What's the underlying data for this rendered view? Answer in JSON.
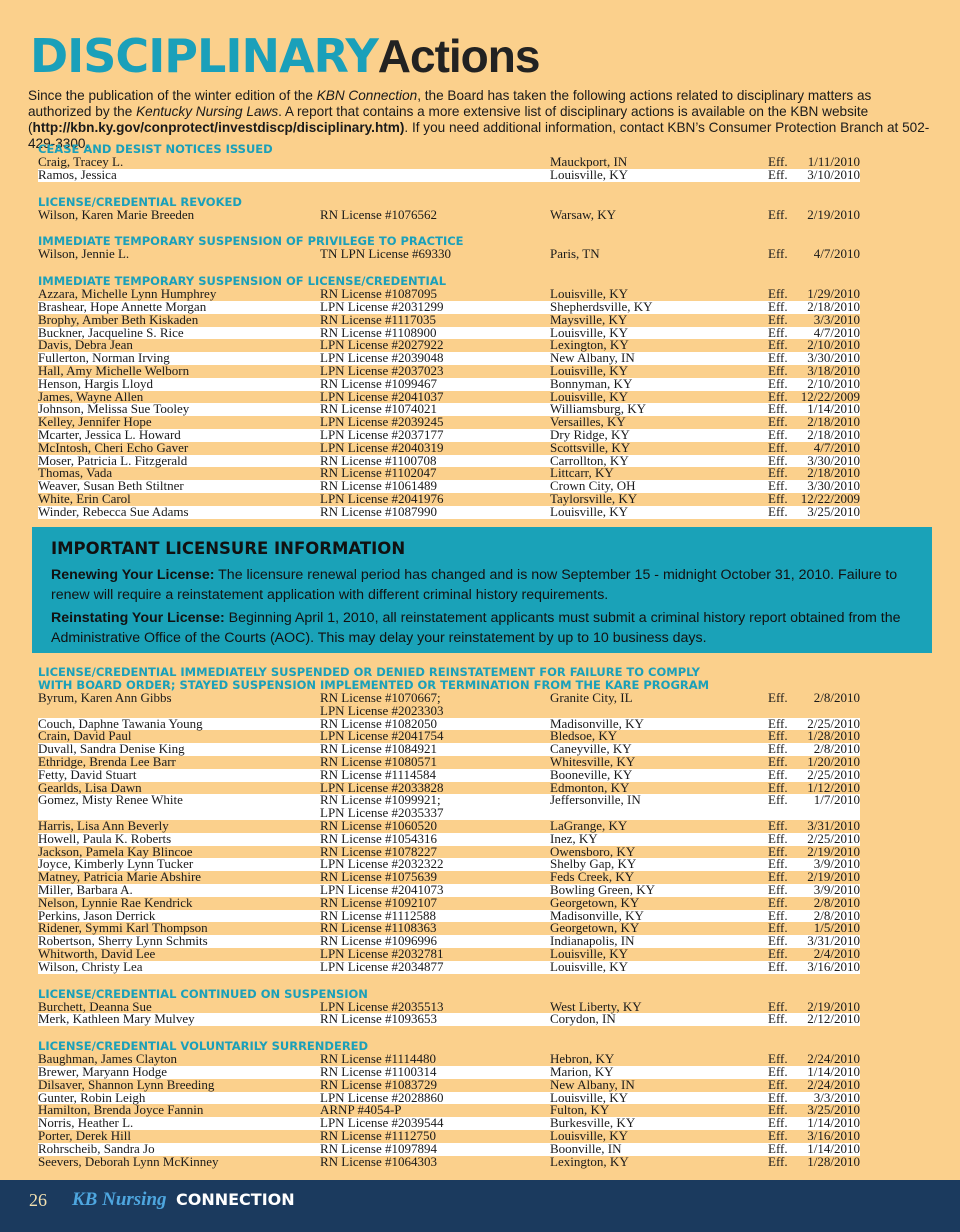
{
  "header": {
    "title_bold": "DISCIPLINARY",
    "title_light": "Actions"
  },
  "intro": [
    "Since the publication of the winter edition of the ",
    "KBN Connection",
    ", the Board has taken the following actions related to disciplinary matters as authorized by the ",
    "Kentucky Nursing Laws",
    ".  A report that contains a more extensive list of disciplinary actions is available on the KBN website (",
    "http://kbn.ky.gov/conprotect/investdiscp/disciplinary.htm)",
    ". If you need additional information, contact KBN’s Consumer Protection Branch at 502-429-3300."
  ],
  "sections_top": [
    {
      "title": "CEASE AND DESIST NOTICES ISSUED",
      "rows": [
        [
          "Craig, Tracey L.",
          null,
          "Mauckport, IN",
          "Eff.",
          "1/11/2010"
        ],
        [
          "Ramos, Jessica",
          null,
          "Louisville, KY",
          "Eff.",
          "3/10/2010"
        ]
      ]
    },
    {
      "title": "LICENSE/CREDENTIAL REVOKED",
      "rows": [
        [
          "Wilson, Karen Marie Breeden",
          "RN License #1076562",
          "Warsaw, KY",
          "Eff.",
          "2/19/2010"
        ]
      ]
    },
    {
      "title": "IMMEDIATE TEMPORARY SUSPENSION OF PRIVILEGE TO PRACTICE",
      "rows": [
        [
          "Wilson, Jennie L.",
          "TN LPN License #69330",
          "Paris, TN",
          "Eff.",
          "4/7/2010"
        ]
      ]
    },
    {
      "title": "IMMEDIATE TEMPORARY SUSPENSION OF LICENSE/CREDENTIAL",
      "rows": [
        [
          "Azzara, Michelle Lynn Humphrey",
          "RN License #1087095",
          "Louisville, KY",
          "Eff.",
          "1/29/2010"
        ],
        [
          "Brashear, Hope Annette Morgan",
          "LPN License #2031299",
          "Shepherdsville, KY",
          "Eff.",
          "2/18/2010"
        ],
        [
          "Brophy, Amber Beth Kiskaden",
          "RN License #1117035",
          "Maysville, KY",
          "Eff.",
          "3/3/2010"
        ],
        [
          "Buckner, Jacqueline S. Rice",
          "RN License #1108900",
          "Louisville, KY",
          "Eff.",
          "4/7/2010"
        ],
        [
          "Davis, Debra Jean",
          "LPN License #2027922",
          "Lexington, KY",
          "Eff.",
          "2/10/2010"
        ],
        [
          "Fullerton, Norman Irving",
          "LPN License #2039048",
          "New Albany, IN",
          "Eff.",
          "3/30/2010"
        ],
        [
          "Hall, Amy Michelle Welborn",
          "LPN License #2037023",
          "Louisville, KY",
          "Eff.",
          "3/18/2010"
        ],
        [
          "Henson, Hargis Lloyd",
          "RN License #1099467",
          "Bonnyman, KY",
          "Eff.",
          "2/10/2010"
        ],
        [
          "James, Wayne Allen",
          "LPN License #2041037",
          "Louisville, KY",
          "Eff.",
          "12/22/2009"
        ],
        [
          "Johnson, Melissa Sue Tooley",
          "RN License #1074021",
          "Williamsburg, KY",
          "Eff.",
          "1/14/2010"
        ],
        [
          "Kelley, Jennifer Hope",
          "LPN License #2039245",
          "Versailles, KY",
          "Eff.",
          "2/18/2010"
        ],
        [
          "Mcarter, Jessica L. Howard",
          "LPN License #2037177",
          "Dry Ridge, KY",
          "Eff.",
          "2/18/2010"
        ],
        [
          "McIntosh, Cheri Echo Gaver",
          "LPN License #2040319",
          "Scottsville, KY",
          "Eff.",
          "4/7/2010"
        ],
        [
          "Moser, Patricia L. Fitzgerald",
          "RN License #1100708",
          "Carrollton, KY",
          "Eff.",
          "3/30/2010"
        ],
        [
          "Thomas, Vada",
          "RN License #1102047",
          "Littcarr, KY",
          "Eff.",
          "2/18/2010"
        ],
        [
          "Weaver, Susan Beth Stiltner",
          "RN License #1061489",
          "Crown City, OH",
          "Eff.",
          "3/30/2010"
        ],
        [
          "White, Erin Carol",
          "LPN License #2041976",
          "Taylorsville, KY",
          "Eff.",
          "12/22/2009"
        ],
        [
          "Winder, Rebecca Sue Adams",
          "RN License #1087990",
          "Louisville, KY",
          "Eff.",
          "3/25/2010"
        ]
      ]
    }
  ],
  "info_box": {
    "title": "IMPORTANT LICENSURE INFORMATION",
    "paragraphs": [
      {
        "label": "Renewing Your License:",
        "text": " The licensure renewal period has changed and is now September 15 - midnight October 31, 2010. Failure to renew will require a reinstatement application with different criminal history requirements."
      },
      {
        "label": "Reinstating Your License:",
        "text": " Beginning April 1, 2010, all reinstatement applicants must submit a criminal history report obtained from the Administrative Office of the Courts (AOC). This may delay your reinstatement by up to 10 business days."
      }
    ]
  },
  "sections_bottom": [
    {
      "title": "LICENSE/CREDENTIAL IMMEDIATELY SUSPENDED OR DENIED REINSTATEMENT FOR FAILURE TO COMPLY\nWITH BOARD ORDER; STAYED SUSPENSION IMPLEMENTED OR TERMINATION FROM THE KARE PROGRAM",
      "rows": [
        [
          "Byrum, Karen Ann Gibbs",
          "RN License #1070667;\nLPN License #2023303",
          "Granite City, IL",
          "Eff.",
          "2/8/2010"
        ],
        [
          "Couch, Daphne Tawania Young",
          "RN License #1082050",
          "Madisonville, KY",
          "Eff.",
          "2/25/2010"
        ],
        [
          "Crain, David Paul",
          "LPN License #2041754",
          "Bledsoe, KY",
          "Eff.",
          "1/28/2010"
        ],
        [
          "Duvall, Sandra Denise King",
          "RN License #1084921",
          "Caneyville, KY",
          "Eff.",
          "2/8/2010"
        ],
        [
          "Ethridge, Brenda Lee Barr",
          "RN License #1080571",
          "Whitesville, KY",
          "Eff.",
          "1/20/2010"
        ],
        [
          "Fetty, David Stuart",
          "RN License #1114584",
          "Booneville, KY",
          "Eff.",
          "2/25/2010"
        ],
        [
          "Gearlds, Lisa Dawn",
          "LPN License #2033828",
          "Edmonton, KY",
          "Eff.",
          "1/12/2010"
        ],
        [
          "Gomez, Misty Renee White",
          "RN License #1099921;\nLPN License #2035337",
          "Jeffersonville, IN",
          "Eff.",
          "1/7/2010"
        ],
        [
          "Harris, Lisa Ann Beverly",
          "RN License #1060520",
          "LaGrange, KY",
          "Eff.",
          "3/31/2010"
        ],
        [
          "Howell, Paula K. Roberts",
          "RN License #1054316",
          "Inez, KY",
          "Eff.",
          "2/25/2010"
        ],
        [
          "Jackson, Pamela Kay Blincoe",
          "RN License #1078227",
          "Owensboro, KY",
          "Eff.",
          "2/19/2010"
        ],
        [
          "Joyce, Kimberly Lynn Tucker",
          "LPN License #2032322",
          "Shelby Gap, KY",
          "Eff.",
          "3/9/2010"
        ],
        [
          "Matney, Patricia Marie Abshire",
          "RN License #1075639",
          "Feds Creek, KY",
          "Eff.",
          "2/19/2010"
        ],
        [
          "Miller, Barbara A.",
          "LPN License #2041073",
          "Bowling Green, KY",
          "Eff.",
          "3/9/2010"
        ],
        [
          "Nelson, Lynnie Rae Kendrick",
          "RN License #1092107",
          "Georgetown, KY",
          "Eff.",
          "2/8/2010"
        ],
        [
          "Perkins, Jason Derrick",
          "RN License #1112588",
          "Madisonville, KY",
          "Eff.",
          "2/8/2010"
        ],
        [
          "Ridener, Symmi Karl Thompson",
          "RN License #1108363",
          "Georgetown, KY",
          "Eff.",
          "1/5/2010"
        ],
        [
          "Robertson, Sherry Lynn Schmits",
          "RN License #1096996",
          "Indianapolis, IN",
          "Eff.",
          "3/31/2010"
        ],
        [
          "Whitworth, David Lee",
          "LPN License #2032781",
          "Louisville, KY",
          "Eff.",
          "2/4/2010"
        ],
        [
          "Wilson, Christy Lea",
          "LPN License #2034877",
          "Louisville, KY",
          "Eff.",
          "3/16/2010"
        ]
      ]
    },
    {
      "title": "LICENSE/CREDENTIAL CONTINUED ON SUSPENSION",
      "rows": [
        [
          "Burchett, Deanna Sue",
          "LPN License #2035513",
          "West Liberty, KY",
          "Eff.",
          "2/19/2010"
        ],
        [
          "Merk, Kathleen Mary Mulvey",
          "RN License #1093653",
          "Corydon, IN",
          "Eff.",
          "2/12/2010"
        ]
      ]
    },
    {
      "title": "LICENSE/CREDENTIAL VOLUNTARILY SURRENDERED",
      "rows": [
        [
          "Baughman, James Clayton",
          "RN License #1114480",
          "Hebron, KY",
          "Eff.",
          "2/24/2010"
        ],
        [
          "Brewer, Maryann Hodge",
          "RN License #1100314",
          "Marion, KY",
          "Eff.",
          "1/14/2010"
        ],
        [
          "Dilsaver, Shannon Lynn Breeding",
          "RN License #1083729",
          "New Albany, IN",
          "Eff.",
          "2/24/2010"
        ],
        [
          "Gunter, Robin Leigh",
          "LPN License #2028860",
          "Louisville, KY",
          "Eff.",
          "3/3/2010"
        ],
        [
          "Hamilton, Brenda Joyce Fannin",
          "ARNP #4054-P",
          "Fulton, KY",
          "Eff.",
          "3/25/2010"
        ],
        [
          "Norris, Heather L.",
          "LPN License #2039544",
          "Burkesville, KY",
          "Eff.",
          "1/14/2010"
        ],
        [
          "Porter, Derek Hill",
          "RN License #1112750",
          "Louisville, KY",
          "Eff.",
          "3/16/2010"
        ],
        [
          "Rohrscheib, Sandra Jo",
          "RN License #1097894",
          "Boonville, IN",
          "Eff.",
          "1/14/2010"
        ],
        [
          "Seevers, Deborah Lynn McKinney",
          "RN License #1064303",
          "Lexington, KY",
          "Eff.",
          "1/28/2010"
        ]
      ]
    }
  ],
  "footer": {
    "page_number": "26",
    "brand_italic": "KB Nursing",
    "brand_bold": "CONNECTION"
  }
}
